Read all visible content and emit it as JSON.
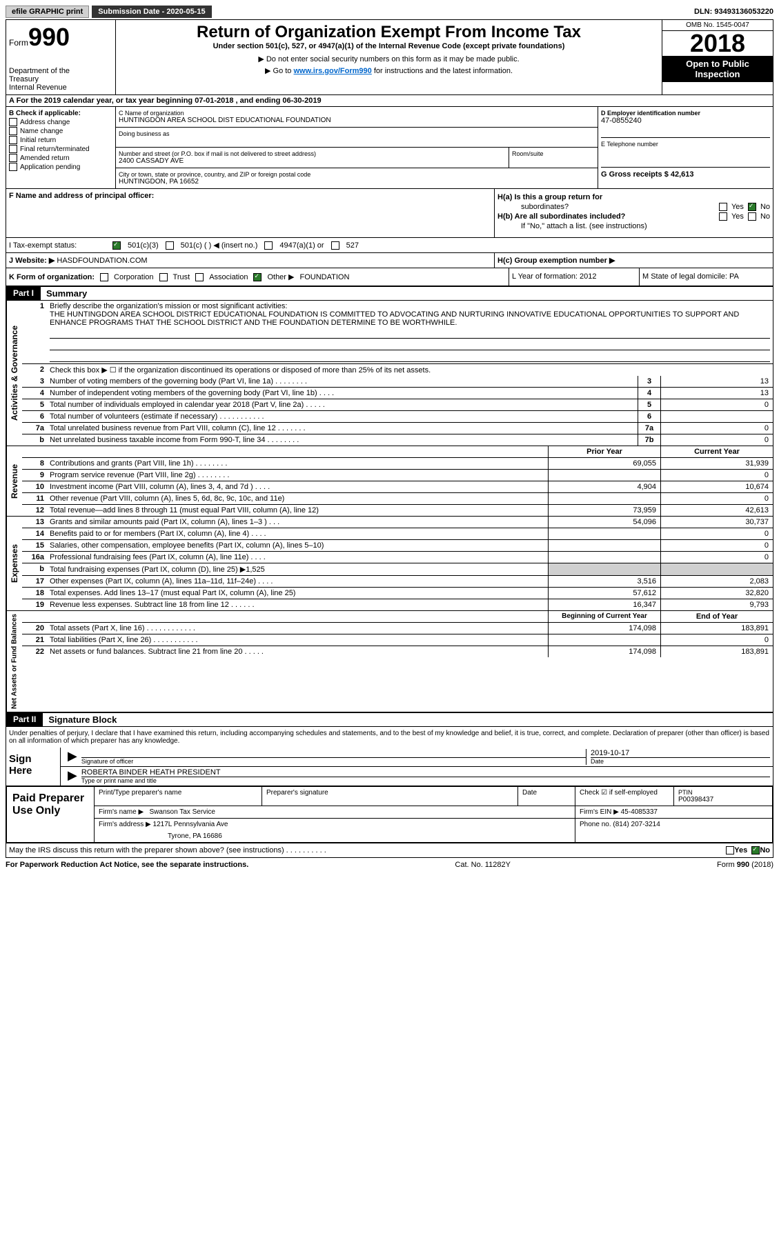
{
  "topbar": {
    "efile": "efile GRAPHIC print",
    "submission_label": "Submission Date - 2020-05-15",
    "dln": "DLN: 93493136053220"
  },
  "header": {
    "form_label": "Form",
    "form_number": "990",
    "dept1": "Department of the",
    "dept2": "Treasury",
    "dept3": "Internal Revenue",
    "title": "Return of Organization Exempt From Income Tax",
    "subtitle": "Under section 501(c), 527, or 4947(a)(1) of the Internal Revenue Code (except private foundations)",
    "note1": "▶ Do not enter social security numbers on this form as it may be made public.",
    "note2_pre": "▶ Go to ",
    "note2_link": "www.irs.gov/Form990",
    "note2_post": " for instructions and the latest information.",
    "omb": "OMB No. 1545-0047",
    "year": "2018",
    "open_pub1": "Open to Public",
    "open_pub2": "Inspection"
  },
  "rowA": "A   For the 2019 calendar year, or tax year beginning 07-01-2018   , and ending 06-30-2019",
  "boxB": {
    "title": "B Check if applicable:",
    "items": [
      "Address change",
      "Name change",
      "Initial return",
      "Final return/terminated",
      "Amended return",
      "Application pending"
    ]
  },
  "boxC": {
    "name_lbl": "C Name of organization",
    "name_val": "HUNTINGDON AREA SCHOOL DIST EDUCATIONAL FOUNDATION",
    "dba_lbl": "Doing business as",
    "street_lbl": "Number and street (or P.O. box if mail is not delivered to street address)",
    "street_val": "2400 CASSADY AVE",
    "room_lbl": "Room/suite",
    "city_lbl": "City or town, state or province, country, and ZIP or foreign postal code",
    "city_val": "HUNTINGDON, PA  16652"
  },
  "boxD": {
    "lbl": "D Employer identification number",
    "val": "47-0855240"
  },
  "boxE": {
    "lbl": "E Telephone number"
  },
  "boxG": {
    "lbl": "G Gross receipts $ 42,613"
  },
  "boxF": {
    "lbl": "F  Name and address of principal officer:"
  },
  "boxH": {
    "a": "H(a)  Is this a group return for",
    "a2": "subordinates?",
    "b": "H(b)  Are all subordinates included?",
    "b2": "If \"No,\" attach a list. (see instructions)",
    "c": "H(c)  Group exemption number ▶"
  },
  "yesno": {
    "yes": "Yes",
    "no": "No"
  },
  "taxI": {
    "lbl": "I   Tax-exempt status:",
    "o1": "501(c)(3)",
    "o2": "501(c) (  ) ◀ (insert no.)",
    "o3": "4947(a)(1) or",
    "o4": "527"
  },
  "rowJ": {
    "lbl": "J   Website: ▶",
    "val": "HASDFOUNDATION.COM"
  },
  "rowK": {
    "lbl": "K Form of organization:",
    "corp": "Corporation",
    "trust": "Trust",
    "assoc": "Association",
    "other": "Other ▶",
    "other_val": "FOUNDATION",
    "L": "L Year of formation: 2012",
    "M": "M State of legal domicile: PA"
  },
  "part1": {
    "hdr": "Part I",
    "title": "Summary"
  },
  "tabs": {
    "ag": "Activities & Governance",
    "rev": "Revenue",
    "exp": "Expenses",
    "nab": "Net Assets or Fund Balances"
  },
  "summary": {
    "l1_lbl": "Briefly describe the organization's mission or most significant activities:",
    "l1_val": "THE HUNTINGDON AREA SCHOOL DISTRICT EDUCATIONAL FOUNDATION IS COMMITTED TO ADVOCATING AND NURTURING INNOVATIVE EDUCATIONAL OPPORTUNITIES TO SUPPORT AND ENHANCE PROGRAMS THAT THE SCHOOL DISTRICT AND THE FOUNDATION DETERMINE TO BE WORTHWHILE.",
    "l2": "Check this box ▶ ☐  if the organization discontinued its operations or disposed of more than 25% of its net assets.",
    "lines_ag": [
      {
        "n": "3",
        "d": "Number of voting members of the governing body (Part VI, line 1a)  .    .    .    .    .    .    .    .",
        "box": "3",
        "v": "13"
      },
      {
        "n": "4",
        "d": "Number of independent voting members of the governing body (Part VI, line 1b)  .    .    .    .",
        "box": "4",
        "v": "13"
      },
      {
        "n": "5",
        "d": "Total number of individuals employed in calendar year 2018 (Part V, line 2a)  .    .    .    .    .",
        "box": "5",
        "v": "0"
      },
      {
        "n": "6",
        "d": "Total number of volunteers (estimate if necessary)   .    .    .    .    .    .    .    .    .    .    .",
        "box": "6",
        "v": ""
      },
      {
        "n": "7a",
        "d": "Total unrelated business revenue from Part VIII, column (C), line 12  .    .    .    .    .    .    .",
        "box": "7a",
        "v": "0"
      },
      {
        "n": "b",
        "d": "Net unrelated business taxable income from Form 990-T, line 34  .    .    .    .    .    .    .    .",
        "box": "7b",
        "v": "0"
      }
    ],
    "col_py": "Prior Year",
    "col_cy": "Current Year",
    "lines_rev": [
      {
        "n": "8",
        "d": "Contributions and grants (Part VIII, line 1h)  .    .    .    .    .    .    .    .",
        "py": "69,055",
        "cy": "31,939"
      },
      {
        "n": "9",
        "d": "Program service revenue (Part VIII, line 2g)  .    .    .    .    .    .    .    .",
        "py": "",
        "cy": "0"
      },
      {
        "n": "10",
        "d": "Investment income (Part VIII, column (A), lines 3, 4, and 7d )  .    .    .    .",
        "py": "4,904",
        "cy": "10,674"
      },
      {
        "n": "11",
        "d": "Other revenue (Part VIII, column (A), lines 5, 6d, 8c, 9c, 10c, and 11e)",
        "py": "",
        "cy": "0"
      },
      {
        "n": "12",
        "d": "Total revenue—add lines 8 through 11 (must equal Part VIII, column (A), line 12)",
        "py": "73,959",
        "cy": "42,613"
      }
    ],
    "lines_exp": [
      {
        "n": "13",
        "d": "Grants and similar amounts paid (Part IX, column (A), lines 1–3 )  .    .    .",
        "py": "54,096",
        "cy": "30,737"
      },
      {
        "n": "14",
        "d": "Benefits paid to or for members (Part IX, column (A), line 4)  .    .    .    .",
        "py": "",
        "cy": "0"
      },
      {
        "n": "15",
        "d": "Salaries, other compensation, employee benefits (Part IX, column (A), lines 5–10)",
        "py": "",
        "cy": "0"
      },
      {
        "n": "16a",
        "d": "Professional fundraising fees (Part IX, column (A), line 11e)  .    .    .    .",
        "py": "",
        "cy": "0"
      },
      {
        "n": "b",
        "d": "Total fundraising expenses (Part IX, column (D), line 25) ▶1,525",
        "py": "shaded",
        "cy": "shaded"
      },
      {
        "n": "17",
        "d": "Other expenses (Part IX, column (A), lines 11a–11d, 11f–24e)  .    .    .    .",
        "py": "3,516",
        "cy": "2,083"
      },
      {
        "n": "18",
        "d": "Total expenses. Add lines 13–17 (must equal Part IX, column (A), line 25)",
        "py": "57,612",
        "cy": "32,820"
      },
      {
        "n": "19",
        "d": "Revenue less expenses. Subtract line 18 from line 12  .    .    .    .    .    .",
        "py": "16,347",
        "cy": "9,793"
      }
    ],
    "col_by": "Beginning of Current Year",
    "col_ey": "End of Year",
    "lines_nab": [
      {
        "n": "20",
        "d": "Total assets (Part X, line 16)  .    .    .    .    .    .    .    .    .    .    .    .",
        "py": "174,098",
        "cy": "183,891"
      },
      {
        "n": "21",
        "d": "Total liabilities (Part X, line 26)  .    .    .    .    .    .    .    .    .    .    .",
        "py": "",
        "cy": "0"
      },
      {
        "n": "22",
        "d": "Net assets or fund balances. Subtract line 21 from line 20  .    .    .    .    .",
        "py": "174,098",
        "cy": "183,891"
      }
    ]
  },
  "part2": {
    "hdr": "Part II",
    "title": "Signature Block"
  },
  "sig": {
    "penalty": "Under penalties of perjury, I declare that I have examined this return, including accompanying schedules and statements, and to the best of my knowledge and belief, it is true, correct, and complete. Declaration of preparer (other than officer) is based on all information of which preparer has any knowledge.",
    "sign_here": "Sign Here",
    "sig_officer": "Signature of officer",
    "date": "Date",
    "date_val": "2019-10-17",
    "name_val": "ROBERTA BINDER HEATH  PRESIDENT",
    "name_lbl": "Type or print name and title"
  },
  "prep": {
    "label": "Paid Preparer Use Only",
    "h1": "Print/Type preparer's name",
    "h2": "Preparer's signature",
    "h3": "Date",
    "check": "Check ☑ if self-employed",
    "ptin_lbl": "PTIN",
    "ptin": "P00398437",
    "firm_name_lbl": "Firm's name   ▶",
    "firm_name": "Swanson Tax Service",
    "firm_ein_lbl": "Firm's EIN ▶",
    "firm_ein": "45-4085337",
    "firm_addr_lbl": "Firm's address ▶",
    "firm_addr1": "1217L Pennsylvania Ave",
    "firm_addr2": "Tyrone, PA  16686",
    "phone_lbl": "Phone no.",
    "phone": "(814) 207-3214"
  },
  "mayirs": "May the IRS discuss this return with the preparer shown above? (see instructions)   .    .    .    .    .    .    .    .    .    .",
  "footer": {
    "left": "For Paperwork Reduction Act Notice, see the separate instructions.",
    "mid": "Cat. No. 11282Y",
    "right": "Form 990 (2018)"
  }
}
